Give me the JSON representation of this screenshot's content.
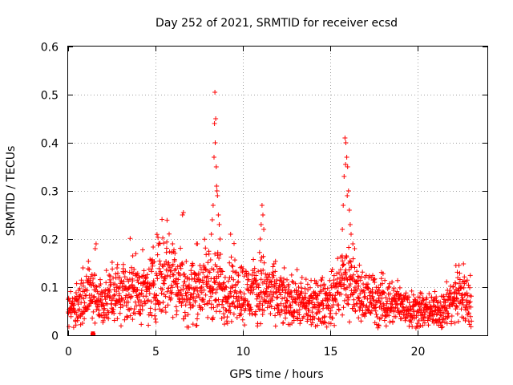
{
  "chart_data": {
    "type": "scatter",
    "title": "Day 252 of 2021, SRMTID for receiver ecsd",
    "xlabel": "GPS time / hours",
    "ylabel": "SRMTID / TECUs",
    "xlim": [
      0,
      24
    ],
    "ylim": [
      0,
      0.6
    ],
    "xticks": [
      0,
      5,
      10,
      15,
      20
    ],
    "yticks": [
      0,
      0.1,
      0.2,
      0.3,
      0.4,
      0.5,
      0.6
    ],
    "xtick_labels": [
      "0",
      "5",
      "10",
      "15",
      "20"
    ],
    "ytick_labels": [
      "0",
      "0.1",
      "0.2",
      "0.3",
      "0.4",
      "0.5",
      "0.6"
    ],
    "grid": true,
    "marker": "+",
    "color": "#ff0000",
    "x_range_of_data": [
      0,
      23.1
    ],
    "baseline_envelope": [
      [
        0.0,
        0.055
      ],
      [
        0.5,
        0.06
      ],
      [
        1.0,
        0.09
      ],
      [
        1.5,
        0.08
      ],
      [
        2.0,
        0.07
      ],
      [
        2.5,
        0.08
      ],
      [
        3.0,
        0.09
      ],
      [
        3.5,
        0.1
      ],
      [
        4.0,
        0.09
      ],
      [
        4.5,
        0.085
      ],
      [
        5.0,
        0.12
      ],
      [
        5.5,
        0.14
      ],
      [
        6.0,
        0.13
      ],
      [
        6.5,
        0.1
      ],
      [
        7.0,
        0.09
      ],
      [
        7.5,
        0.1
      ],
      [
        8.0,
        0.11
      ],
      [
        8.5,
        0.1
      ],
      [
        9.0,
        0.09
      ],
      [
        9.5,
        0.1
      ],
      [
        10.0,
        0.09
      ],
      [
        10.5,
        0.085
      ],
      [
        11.0,
        0.1
      ],
      [
        11.5,
        0.09
      ],
      [
        12.0,
        0.08
      ],
      [
        12.5,
        0.07
      ],
      [
        13.0,
        0.07
      ],
      [
        13.5,
        0.065
      ],
      [
        14.0,
        0.06
      ],
      [
        14.5,
        0.07
      ],
      [
        15.0,
        0.07
      ],
      [
        15.5,
        0.1
      ],
      [
        16.0,
        0.12
      ],
      [
        16.5,
        0.09
      ],
      [
        17.0,
        0.08
      ],
      [
        17.5,
        0.075
      ],
      [
        18.0,
        0.07
      ],
      [
        18.5,
        0.07
      ],
      [
        19.0,
        0.065
      ],
      [
        19.5,
        0.06
      ],
      [
        20.0,
        0.055
      ],
      [
        20.5,
        0.05
      ],
      [
        21.0,
        0.05
      ],
      [
        21.5,
        0.055
      ],
      [
        22.0,
        0.07
      ],
      [
        22.5,
        0.09
      ],
      [
        23.0,
        0.07
      ]
    ],
    "spikes": [
      [
        8.4,
        0.505
      ],
      [
        8.45,
        0.45
      ],
      [
        8.38,
        0.44
      ],
      [
        8.42,
        0.4
      ],
      [
        8.35,
        0.37
      ],
      [
        8.48,
        0.35
      ],
      [
        8.5,
        0.31
      ],
      [
        8.52,
        0.3
      ],
      [
        8.3,
        0.27
      ],
      [
        8.55,
        0.29
      ],
      [
        8.25,
        0.24
      ],
      [
        8.6,
        0.25
      ],
      [
        8.2,
        0.21
      ],
      [
        8.65,
        0.23
      ],
      [
        8.7,
        0.2
      ],
      [
        15.85,
        0.41
      ],
      [
        15.9,
        0.4
      ],
      [
        15.95,
        0.37
      ],
      [
        15.88,
        0.355
      ],
      [
        16.0,
        0.35
      ],
      [
        15.8,
        0.33
      ],
      [
        16.05,
        0.3
      ],
      [
        15.98,
        0.29
      ],
      [
        15.75,
        0.27
      ],
      [
        16.1,
        0.26
      ],
      [
        16.15,
        0.23
      ],
      [
        15.7,
        0.22
      ],
      [
        16.2,
        0.21
      ],
      [
        16.3,
        0.19
      ],
      [
        16.4,
        0.18
      ],
      [
        11.1,
        0.27
      ],
      [
        11.15,
        0.25
      ],
      [
        11.05,
        0.23
      ],
      [
        11.2,
        0.22
      ],
      [
        11.0,
        0.2
      ],
      [
        6.6,
        0.255
      ],
      [
        6.55,
        0.25
      ],
      [
        7.35,
        0.19
      ],
      [
        7.4,
        0.19
      ],
      [
        9.3,
        0.21
      ],
      [
        22.2,
        0.145
      ],
      [
        1.6,
        0.19
      ],
      [
        1.55,
        0.18
      ],
      [
        3.7,
        0.165
      ],
      [
        2.8,
        0.14
      ]
    ],
    "outliers": [
      [
        1.4,
        0.0
      ],
      [
        1.45,
        0.0
      ],
      [
        1.42,
        0.003
      ]
    ]
  }
}
